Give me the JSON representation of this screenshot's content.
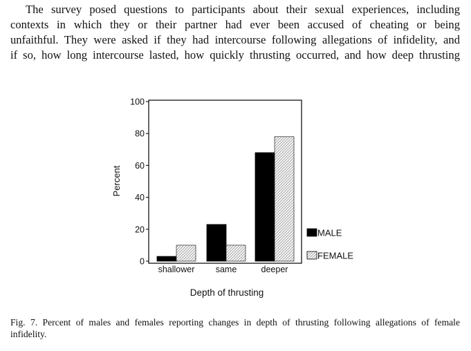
{
  "paragraph": {
    "lines": [
      "The survey posed questions to participants about their sexual experiences, including",
      "contexts in which they or their partner had ever been accused of cheating or being",
      "unfaithful. They were asked if they had intercourse following allegations of infidelity, and",
      "if so, how long intercourse lasted, how quickly thrusting occurred, and how deep thrusting"
    ]
  },
  "chart_data": {
    "type": "bar",
    "categories": [
      "shallower",
      "same",
      "deeper"
    ],
    "series": [
      {
        "name": "MALE",
        "values": [
          3,
          23,
          68
        ],
        "color": "#000000"
      },
      {
        "name": "FEMALE",
        "values": [
          10,
          10,
          78
        ],
        "color": "#d9d9d9"
      }
    ],
    "title": "",
    "xlabel": "Depth of thrusting",
    "ylabel": "Percent",
    "ylim": [
      0,
      100
    ],
    "yticks": [
      "0",
      "20",
      "40",
      "60",
      "80",
      "100"
    ],
    "grid": false,
    "legend_position": "right"
  },
  "caption": {
    "lines": [
      "Fig. 7. Percent of males and females reporting changes in depth of thrusting following allegations of female",
      "infidelity."
    ]
  }
}
